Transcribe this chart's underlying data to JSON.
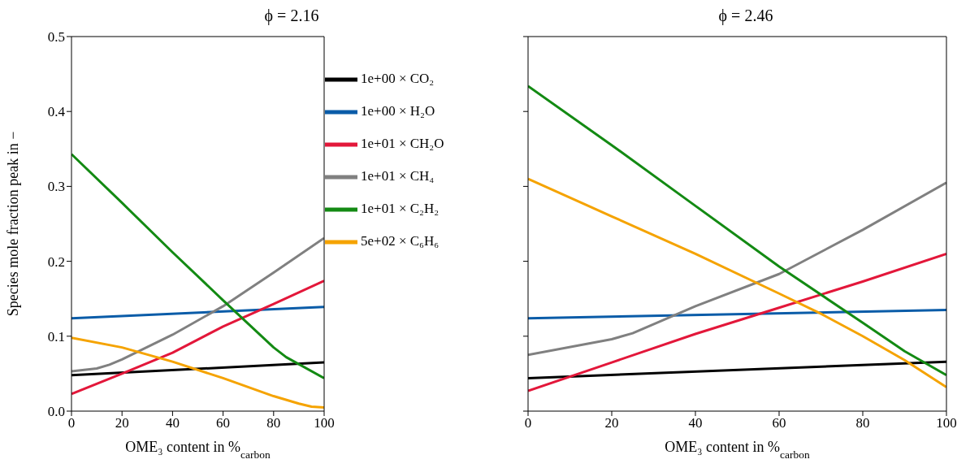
{
  "chart_data": [
    {
      "type": "line",
      "title": "ϕ = 2.16",
      "xlabel": "OME₃ content in %$_{carbon}$",
      "ylabel": "Species mole fraction peak in −",
      "xlim": [
        0,
        100
      ],
      "ylim": [
        0,
        0.5
      ],
      "xticks": [
        0,
        20,
        40,
        60,
        80,
        100
      ],
      "yticks": [
        {
          "value": 0,
          "label": "0.0"
        },
        0.1,
        0.2,
        0.3,
        0.4,
        0.5
      ],
      "grid": false,
      "legend": "top right",
      "marker": "none",
      "line_style": "solid",
      "series": [
        {
          "name": "1e+00 × CO₂",
          "color": "#000000",
          "x": [
            0,
            100
          ],
          "values": [
            0.048,
            0.065
          ]
        },
        {
          "name": "1e+00 × H₂O",
          "color": "#0a5ca8",
          "x": [
            0,
            100
          ],
          "values": [
            0.124,
            0.139
          ]
        },
        {
          "name": "1e+01 × CH₂O",
          "color": "#e3173a",
          "x": [
            0,
            20,
            40,
            60,
            80,
            100
          ],
          "values": [
            0.023,
            0.05,
            0.078,
            0.113,
            0.143,
            0.174
          ]
        },
        {
          "name": "1e+01 × CH₄",
          "color": "#808080",
          "x": [
            0,
            10,
            15,
            20,
            40,
            60,
            80,
            100
          ],
          "values": [
            0.053,
            0.057,
            0.062,
            0.069,
            0.102,
            0.14,
            0.185,
            0.231
          ]
        },
        {
          "name": "1e+01 × C₂H₂",
          "color": "#138a13",
          "x": [
            0,
            20,
            40,
            60,
            80,
            85,
            100
          ],
          "values": [
            0.343,
            0.278,
            0.212,
            0.148,
            0.085,
            0.072,
            0.044
          ]
        },
        {
          "name": "5e+02 × C₆H₆",
          "color": "#f5a300",
          "x": [
            0,
            20,
            40,
            60,
            80,
            90,
            95,
            100
          ],
          "values": [
            0.098,
            0.085,
            0.066,
            0.044,
            0.02,
            0.01,
            0.006,
            0.005
          ]
        }
      ]
    },
    {
      "type": "line",
      "title": "ϕ = 2.46",
      "xlabel": "OME₃ content in %$_{carbon}$",
      "xlim": [
        0,
        100
      ],
      "ylim": [
        0,
        0.5
      ],
      "xticks": [
        0,
        20,
        40,
        60,
        80,
        100
      ],
      "yticks": [
        0,
        0.1,
        0.2,
        0.3,
        0.4,
        0.5
      ],
      "tick_labels": "x",
      "grid": false,
      "legend": false,
      "marker": "none",
      "line_style": "solid",
      "series": [
        {
          "color": "#000000",
          "x": [
            0,
            100
          ],
          "values": [
            0.044,
            0.066
          ]
        },
        {
          "color": "#0a5ca8",
          "x": [
            0,
            100
          ],
          "values": [
            0.124,
            0.135
          ]
        },
        {
          "color": "#e3173a",
          "x": [
            0,
            20,
            40,
            60,
            80,
            100
          ],
          "values": [
            0.027,
            0.065,
            0.103,
            0.138,
            0.173,
            0.21
          ]
        },
        {
          "color": "#808080",
          "x": [
            0,
            20,
            25,
            40,
            60,
            80,
            100
          ],
          "values": [
            0.075,
            0.096,
            0.104,
            0.14,
            0.183,
            0.242,
            0.305
          ]
        },
        {
          "color": "#138a13",
          "x": [
            0,
            20,
            40,
            60,
            80,
            90,
            100
          ],
          "values": [
            0.434,
            0.355,
            0.274,
            0.193,
            0.118,
            0.08,
            0.048
          ]
        },
        {
          "color": "#f5a300",
          "x": [
            0,
            20,
            40,
            60,
            70,
            80,
            90,
            100
          ],
          "values": [
            0.31,
            0.26,
            0.21,
            0.157,
            0.13,
            0.1,
            0.068,
            0.032
          ]
        }
      ]
    }
  ]
}
